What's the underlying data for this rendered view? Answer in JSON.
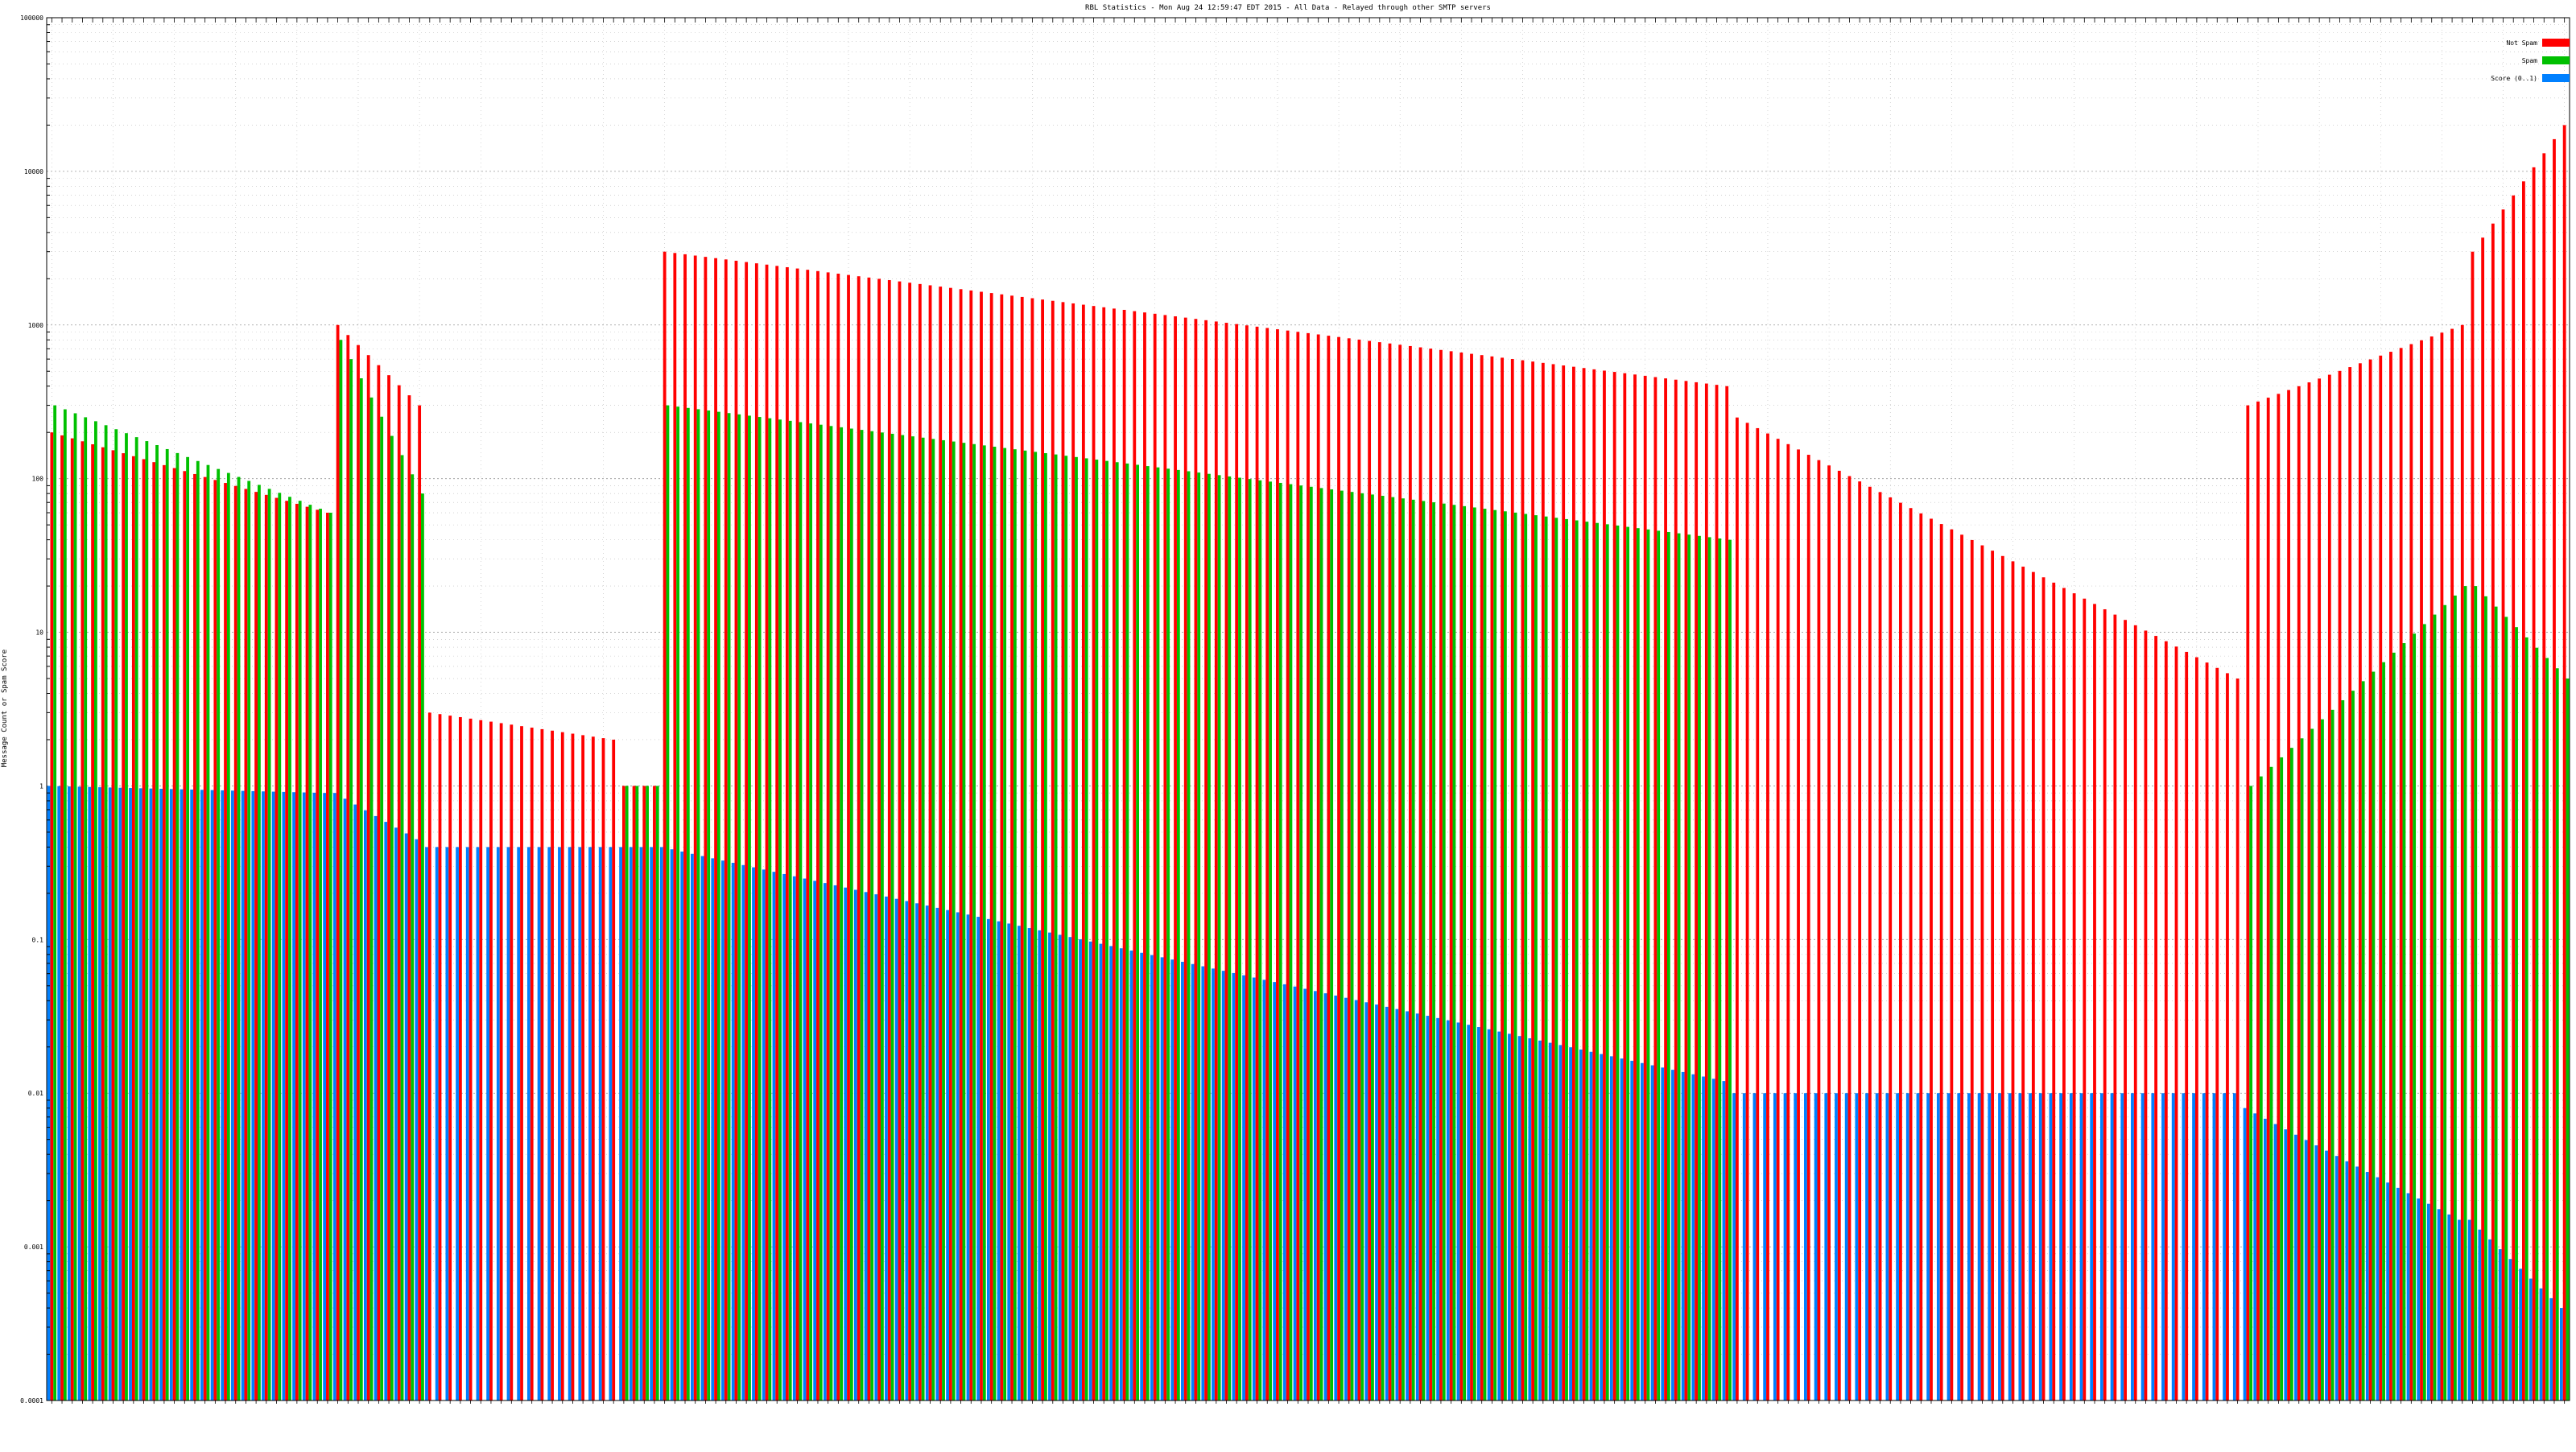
{
  "chart_data": {
    "type": "bar",
    "title": "RBL Statistics - Mon Aug 24 12:59:47 EDT 2015 - All Data - Relayed through other SMTP servers",
    "ylabel": "Message Count or Spam Score",
    "xlabel": "",
    "y_scale": "log",
    "ylim": [
      0.0001,
      100000
    ],
    "yticks": [
      "0.0001",
      "0.001",
      "0.01",
      "0.1",
      "1",
      "10",
      "100",
      "1000",
      "10000",
      "100000"
    ],
    "grid": true,
    "legend_position": "top-right",
    "category_count": 247,
    "category_labels_note": "",
    "series": [
      {
        "name": "Not Spam",
        "color": "#ff0000"
      },
      {
        "name": "Spam",
        "color": "#00c000"
      },
      {
        "name": "Score (0..1)",
        "color": "#0080ff"
      }
    ],
    "segments": [
      {
        "from": 0,
        "to": 28,
        "not_spam": [
          200,
          60
        ],
        "spam": [
          300,
          60
        ],
        "score": [
          1.0,
          0.9
        ]
      },
      {
        "from": 28,
        "to": 37,
        "not_spam": [
          1000,
          300
        ],
        "spam": [
          800,
          80
        ],
        "score": [
          0.9,
          0.45
        ]
      },
      {
        "from": 37,
        "to": 56,
        "not_spam": [
          3,
          2
        ],
        "spam": [
          0,
          0
        ],
        "score": [
          0.4,
          0.4
        ]
      },
      {
        "from": 56,
        "to": 60,
        "not_spam": [
          1,
          1
        ],
        "spam": [
          1,
          1
        ],
        "score": [
          0.4,
          0.4
        ]
      },
      {
        "from": 60,
        "to": 165,
        "not_spam": [
          3000,
          400
        ],
        "spam": [
          300,
          40
        ],
        "score": [
          0.4,
          0.012
        ]
      },
      {
        "from": 165,
        "to": 215,
        "not_spam": [
          250,
          5
        ],
        "spam": [
          0,
          0
        ],
        "score": [
          0.01,
          0.01
        ]
      },
      {
        "from": 215,
        "to": 237,
        "not_spam": [
          300,
          1000
        ],
        "spam": [
          1,
          20
        ],
        "score": [
          0.008,
          0.0015
        ]
      },
      {
        "from": 237,
        "to": 247,
        "not_spam": [
          3000,
          20000
        ],
        "spam": [
          20,
          5
        ],
        "score": [
          0.0015,
          0.0004
        ]
      }
    ]
  }
}
